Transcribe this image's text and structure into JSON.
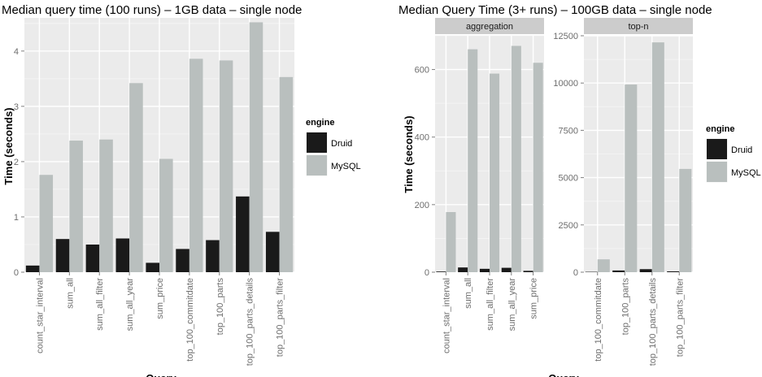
{
  "chart_data": [
    {
      "type": "bar",
      "title": "Median query time (100 runs) – 1GB data – single node",
      "xlabel": "Query",
      "ylabel": "Time (seconds)",
      "ylim": [
        0,
        4.6
      ],
      "yticks": [
        0,
        1,
        2,
        3,
        4
      ],
      "grid": true,
      "legend": {
        "title": "engine",
        "position": "right",
        "entries": [
          "Druid",
          "MySQL"
        ]
      },
      "categories": [
        "count_star_interval",
        "sum_all",
        "sum_all_filter",
        "sum_all_year",
        "sum_price",
        "top_100_commitdate",
        "top_100_parts",
        "top_100_parts_details",
        "top_100_parts_filter"
      ],
      "series": [
        {
          "name": "Druid",
          "color": "#1a1a1a",
          "values": [
            0.12,
            0.6,
            0.5,
            0.61,
            0.17,
            0.42,
            0.58,
            1.37,
            0.73
          ]
        },
        {
          "name": "MySQL",
          "color": "#b9bfbe",
          "values": [
            1.76,
            2.38,
            2.4,
            3.42,
            2.05,
            3.86,
            3.83,
            4.52,
            3.53
          ]
        }
      ]
    },
    {
      "type": "bar",
      "title": "Median Query Time (3+ runs) – 100GB data – single node",
      "xlabel": "Query",
      "ylabel": "Time (seconds)",
      "grid": true,
      "legend": {
        "title": "engine",
        "position": "right",
        "entries": [
          "Druid",
          "MySQL"
        ]
      },
      "facets": [
        {
          "name": "aggregation",
          "ylim": [
            0,
            700
          ],
          "yticks": [
            0,
            200,
            400,
            600
          ],
          "categories": [
            "count_star_interval",
            "sum_all",
            "sum_all_filter",
            "sum_all_year",
            "sum_price"
          ],
          "series": [
            {
              "name": "Druid",
              "values": [
                2,
                14,
                10,
                13,
                4
              ]
            },
            {
              "name": "MySQL",
              "values": [
                178,
                660,
                588,
                670,
                620
              ]
            }
          ]
        },
        {
          "name": "top-n",
          "ylim": [
            0,
            12500
          ],
          "yticks": [
            0,
            2500,
            5000,
            7500,
            10000,
            12500
          ],
          "categories": [
            "top_100_commitdate",
            "top_100_parts",
            "top_100_parts_details",
            "top_100_parts_filter"
          ],
          "series": [
            {
              "name": "Druid",
              "values": [
                20,
                90,
                160,
                45
              ]
            },
            {
              "name": "MySQL",
              "values": [
                680,
                9920,
                12150,
                5460
              ]
            }
          ]
        }
      ]
    }
  ]
}
